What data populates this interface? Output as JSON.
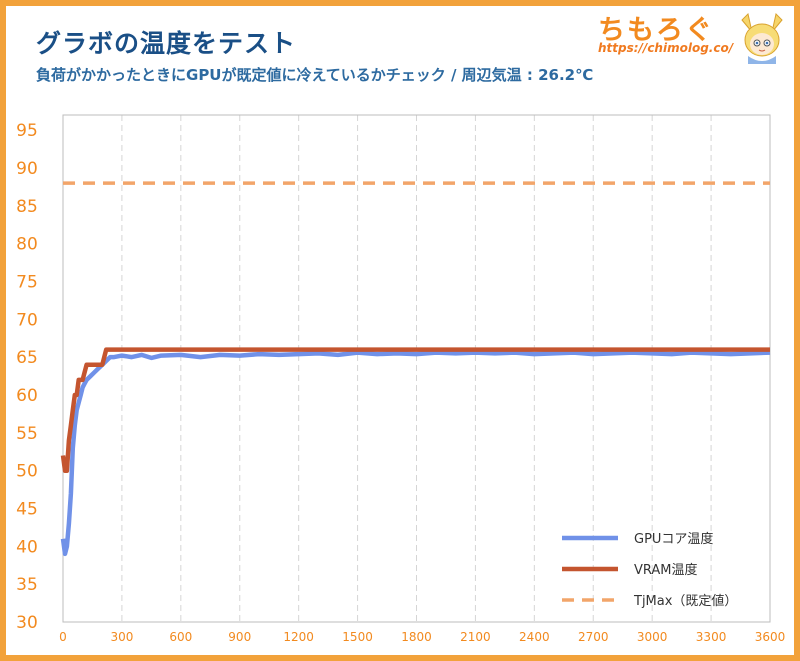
{
  "header": {
    "title": "グラボの温度をテスト",
    "subtitle": "負荷がかかったときにGPUが既定値に冷えているかチェック / 周辺気温 : 26.2℃"
  },
  "logo": {
    "text": "ちもろぐ",
    "url": "https://chimolog.co/",
    "mascot_icon": "mascot-icon"
  },
  "colors": {
    "gpu": "#7091e8",
    "vram": "#c4552f",
    "tjmax": "#f2a56a",
    "axis_text": "#f28a1f",
    "grid": "#d5d5d5",
    "frame": "#f2a23b"
  },
  "chart_data": {
    "type": "line",
    "title": "グラボの温度をテスト",
    "subtitle": "負荷がかかったときにGPUが既定値に冷えているかチェック / 周辺気温 : 26.2℃",
    "xlim": [
      0,
      3600
    ],
    "ylim": [
      30,
      97
    ],
    "x_ticks": [
      0,
      300,
      600,
      900,
      1200,
      1500,
      1800,
      2100,
      2400,
      2700,
      3000,
      3300,
      3600
    ],
    "y_ticks": [
      30,
      35,
      40,
      45,
      50,
      55,
      60,
      65,
      70,
      75,
      80,
      85,
      90,
      95
    ],
    "grid": "vertical dashed",
    "legend_position": "bottom-right",
    "series": [
      {
        "name": "GPUコア温度",
        "color": "#7091e8",
        "style": "solid",
        "x": [
          0,
          10,
          20,
          30,
          40,
          50,
          60,
          70,
          80,
          90,
          100,
          110,
          120,
          140,
          160,
          180,
          200,
          220,
          240,
          260,
          300,
          350,
          400,
          450,
          500,
          600,
          700,
          800,
          900,
          1000,
          1100,
          1200,
          1300,
          1400,
          1500,
          1600,
          1700,
          1800,
          1900,
          2000,
          2100,
          2200,
          2300,
          2400,
          2500,
          2600,
          2700,
          2800,
          2900,
          3000,
          3100,
          3200,
          3300,
          3400,
          3500,
          3600
        ],
        "y": [
          41,
          39,
          40,
          43,
          47,
          53,
          56,
          58,
          59,
          60,
          61,
          61.5,
          62,
          62.5,
          63,
          63.5,
          64,
          64.5,
          65,
          65,
          65.2,
          65,
          65.3,
          64.9,
          65.2,
          65.3,
          65,
          65.3,
          65.2,
          65.4,
          65.3,
          65.4,
          65.5,
          65.3,
          65.6,
          65.4,
          65.5,
          65.4,
          65.6,
          65.5,
          65.6,
          65.5,
          65.6,
          65.4,
          65.5,
          65.6,
          65.4,
          65.5,
          65.6,
          65.5,
          65.4,
          65.6,
          65.5,
          65.4,
          65.5,
          65.6
        ]
      },
      {
        "name": "VRAM温度",
        "color": "#c4552f",
        "style": "solid",
        "x": [
          0,
          10,
          20,
          30,
          40,
          50,
          60,
          70,
          80,
          90,
          100,
          120,
          140,
          160,
          180,
          200,
          220,
          240,
          300,
          400,
          500,
          600,
          700,
          800,
          900,
          1000,
          1100,
          1200,
          1300,
          1400,
          1500,
          1600,
          1700,
          1800,
          1900,
          2000,
          2100,
          2200,
          2300,
          2400,
          2500,
          2600,
          2700,
          2800,
          2900,
          3000,
          3100,
          3200,
          3300,
          3400,
          3500,
          3600
        ],
        "y": [
          52,
          50,
          50,
          54,
          56,
          58,
          60,
          60,
          62,
          62,
          62,
          64,
          64,
          64,
          64,
          64,
          66,
          66,
          66,
          66,
          66,
          66,
          66,
          66,
          66,
          66,
          66,
          66,
          66,
          66,
          66,
          66,
          66,
          66,
          66,
          66,
          66,
          66,
          66,
          66,
          66,
          66,
          66,
          66,
          66,
          66,
          66,
          66,
          66,
          66,
          66,
          66
        ]
      },
      {
        "name": "TjMax（既定値）",
        "color": "#f2a56a",
        "style": "dashed",
        "x": [
          0,
          3600
        ],
        "y": [
          88,
          88
        ]
      }
    ]
  }
}
